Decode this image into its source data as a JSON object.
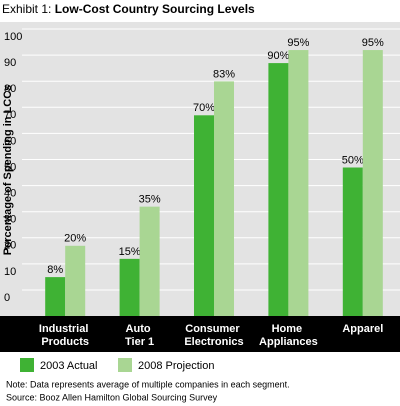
{
  "chart_data": {
    "type": "bar",
    "title_prefix": "Exhibit 1:",
    "title": "Low-Cost Country Sourcing Levels",
    "y_label": "Percentage of Spending in LCCs",
    "categories": [
      "Industrial Products",
      "Auto Tier 1",
      "Consumer Electronics",
      "Home Appliances",
      "Apparel"
    ],
    "series": [
      {
        "name": "2003 Actual",
        "color": "#3fb234",
        "values": [
          8,
          15,
          70,
          90,
          50
        ],
        "value_labels": [
          "8%",
          "15%",
          "70%",
          "90%",
          "50%"
        ]
      },
      {
        "name": "2008 Projection",
        "color": "#a9d693",
        "values": [
          20,
          35,
          83,
          95,
          95
        ],
        "value_labels": [
          "20%",
          "35%",
          "83%",
          "95%",
          "95%"
        ]
      }
    ],
    "ylim": [
      0,
      100
    ],
    "yticks": [
      0,
      10,
      20,
      30,
      40,
      50,
      60,
      70,
      80,
      90,
      100
    ],
    "grid": true,
    "notes": [
      "Note: Data represents average of multiple companies in each segment.",
      "Source: Booz Allen Hamilton Global Sourcing Survey"
    ]
  }
}
